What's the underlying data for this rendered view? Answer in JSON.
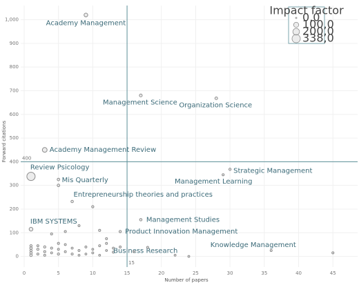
{
  "chart_data": {
    "type": "bubble",
    "x_label": "Number of papers",
    "y_label": "Forward citations",
    "x": [
      9,
      17,
      28,
      3,
      1,
      5,
      5,
      7,
      10,
      30,
      29,
      17,
      1,
      14,
      13,
      36,
      45,
      1,
      1,
      1,
      1,
      1,
      2,
      2,
      2,
      3,
      3,
      3,
      4,
      4,
      5,
      5,
      5,
      6,
      6,
      7,
      7,
      8,
      8,
      9,
      9,
      10,
      11,
      11,
      12,
      12,
      13,
      4,
      6,
      8,
      11,
      12,
      14,
      18,
      22,
      24,
      16,
      10
    ],
    "values": [
      1020,
      680,
      668,
      450,
      338,
      325,
      300,
      232,
      210,
      368,
      345,
      155,
      115,
      105,
      18,
      25,
      15,
      5,
      15,
      25,
      35,
      45,
      10,
      30,
      45,
      20,
      40,
      5,
      15,
      35,
      10,
      30,
      55,
      20,
      50,
      10,
      35,
      5,
      25,
      40,
      10,
      15,
      45,
      5,
      55,
      25,
      35,
      95,
      105,
      130,
      110,
      75,
      40,
      38,
      5,
      0,
      20,
      30
    ],
    "sizes": [
      40,
      15,
      12,
      80,
      338,
      10,
      10,
      8,
      6,
      6,
      4,
      8,
      40,
      6,
      3,
      3,
      4,
      10,
      8,
      6,
      10,
      6,
      4,
      6,
      3,
      4,
      6,
      3,
      3,
      4,
      6,
      3,
      4,
      3,
      3,
      4,
      3,
      2,
      3,
      3,
      2,
      3,
      3,
      2,
      3,
      2,
      3,
      4,
      4,
      3,
      4,
      3,
      3,
      3,
      2,
      2,
      3,
      2
    ],
    "labels": [
      "Academy  Management",
      "Management Science",
      "Organization Science",
      "Academy  Management Review",
      "Review Psicology",
      "Mis Quarterly",
      null,
      "Entrepreneurship theories and practices",
      null,
      "Strategic Management",
      "Management Learning",
      "Management Studies",
      "IBM SYSTEMS",
      "Product Innovation Management",
      "Business Research",
      "Knowledge Management",
      null,
      null,
      null,
      null,
      null,
      null,
      null,
      null,
      null,
      null,
      null,
      null,
      null,
      null,
      null,
      null,
      null,
      null,
      null,
      null,
      null,
      null,
      null,
      null,
      null,
      null,
      null,
      null,
      null,
      null,
      null,
      null,
      null,
      null,
      null,
      null,
      null,
      null,
      null,
      null,
      null,
      null
    ],
    "xlim": [
      -0.5,
      48.6
    ],
    "ylim": [
      -45,
      1060
    ],
    "xticks": [
      0,
      5,
      10,
      15,
      20,
      25,
      30,
      35,
      40,
      45
    ],
    "yticks": [
      0,
      100,
      200,
      300,
      400,
      500,
      600,
      700,
      800,
      900,
      {
        "value": 1000,
        "label": "1,000"
      }
    ],
    "ref_x": 15,
    "ref_y": 400,
    "grid": true,
    "legend": {
      "title": "Impact factor",
      "position": "top-right",
      "sizes": [
        {
          "value": 0,
          "label": "0,0"
        },
        {
          "value": 100,
          "label": "100,0"
        },
        {
          "value": 200,
          "label": "200,0"
        },
        {
          "value": 338,
          "label": "338,0"
        }
      ]
    },
    "point_color": "#8c8c8c",
    "label_color": "#3b6a78",
    "ref_color": "#5b8f99"
  }
}
